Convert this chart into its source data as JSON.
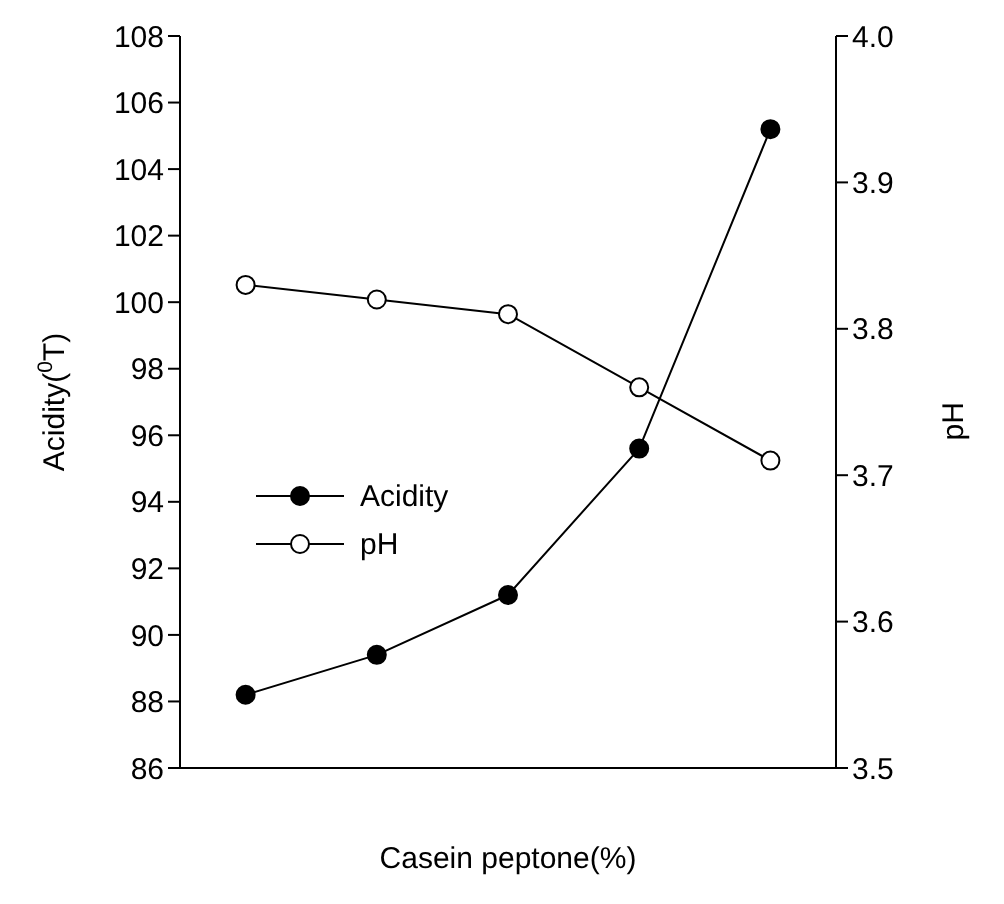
{
  "chart_data": {
    "type": "line",
    "xlabel": "Casein peptone(%)",
    "ylabel": "Acidity($^{0}$T)",
    "y2label": "pH",
    "categories": [
      null,
      null,
      null,
      null,
      null
    ],
    "series": [
      {
        "name": "Acidity",
        "color": "#000000",
        "values": [
          88.2,
          89.4,
          91.2,
          95.6,
          105.2
        ]
      },
      {
        "name": "pH",
        "color": "#000000",
        "axis": "y2",
        "values": [
          3.83,
          3.82,
          3.81,
          3.76,
          3.71
        ]
      }
    ],
    "ylim": [
      86,
      108
    ],
    "yticks": [
      86,
      88,
      90,
      92,
      94,
      96,
      98,
      100,
      102,
      104,
      106,
      108
    ],
    "y2lim": [
      3.5,
      4.0
    ],
    "y2ticks": [
      {
        "value": 3.5,
        "label": "3.5"
      },
      {
        "value": 3.6,
        "label": "3.6"
      },
      {
        "value": 3.7,
        "label": "3.7"
      },
      {
        "value": 3.8,
        "label": "3.8"
      },
      {
        "value": 3.9,
        "label": "3.9"
      },
      {
        "value": 4.0,
        "label": "4.0"
      }
    ],
    "legend": "left",
    "marker": "circle",
    "grid": false,
    "line_style": "solid"
  }
}
